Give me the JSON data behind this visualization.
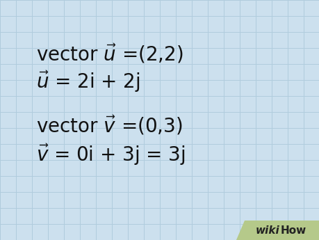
{
  "bg_color": "#cce0ee",
  "grid_color": "#b0ccdd",
  "text_color": "#111111",
  "wikihow_bg": "#b5c98a",
  "font_size_main": 20,
  "fig_width": 4.6,
  "fig_height": 3.45,
  "dpi": 100
}
